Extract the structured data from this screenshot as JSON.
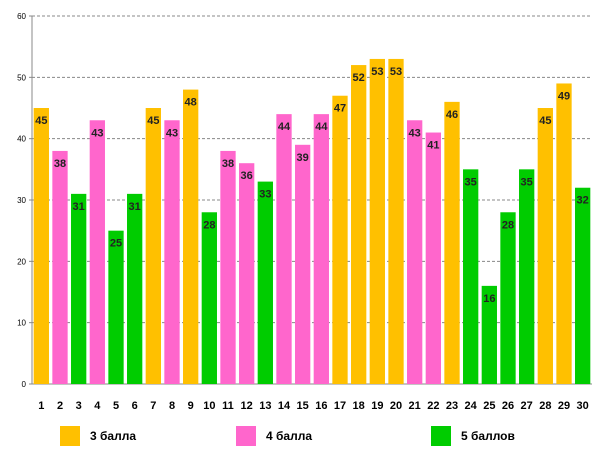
{
  "chart_data": {
    "type": "bar",
    "title": "",
    "xlabel": "",
    "ylabel": "",
    "ylim": [
      0,
      60
    ],
    "yticks": [
      0,
      10,
      20,
      30,
      40,
      50,
      60
    ],
    "grid": true,
    "legend_position": "bottom",
    "categories": [
      "1",
      "2",
      "3",
      "4",
      "5",
      "6",
      "7",
      "8",
      "9",
      "10",
      "11",
      "12",
      "13",
      "14",
      "15",
      "16",
      "17",
      "18",
      "19",
      "20",
      "21",
      "22",
      "23",
      "24",
      "25",
      "26",
      "27",
      "28",
      "29",
      "30"
    ],
    "values": [
      45,
      38,
      31,
      43,
      25,
      31,
      45,
      43,
      48,
      28,
      38,
      36,
      33,
      44,
      39,
      44,
      47,
      52,
      53,
      53,
      43,
      41,
      46,
      35,
      16,
      28,
      35,
      45,
      49,
      32
    ],
    "grade_groups": [
      3,
      4,
      5,
      4,
      5,
      5,
      3,
      4,
      3,
      5,
      4,
      4,
      5,
      4,
      4,
      4,
      3,
      3,
      3,
      3,
      4,
      4,
      3,
      5,
      5,
      5,
      5,
      3,
      3,
      5
    ],
    "series": [
      {
        "key": 3,
        "name": "3 балла",
        "color": "#FFC000"
      },
      {
        "key": 4,
        "name": "4 балла",
        "color": "#FF66CC"
      },
      {
        "key": 5,
        "name": "5 баллов",
        "color": "#00CC00"
      }
    ]
  }
}
